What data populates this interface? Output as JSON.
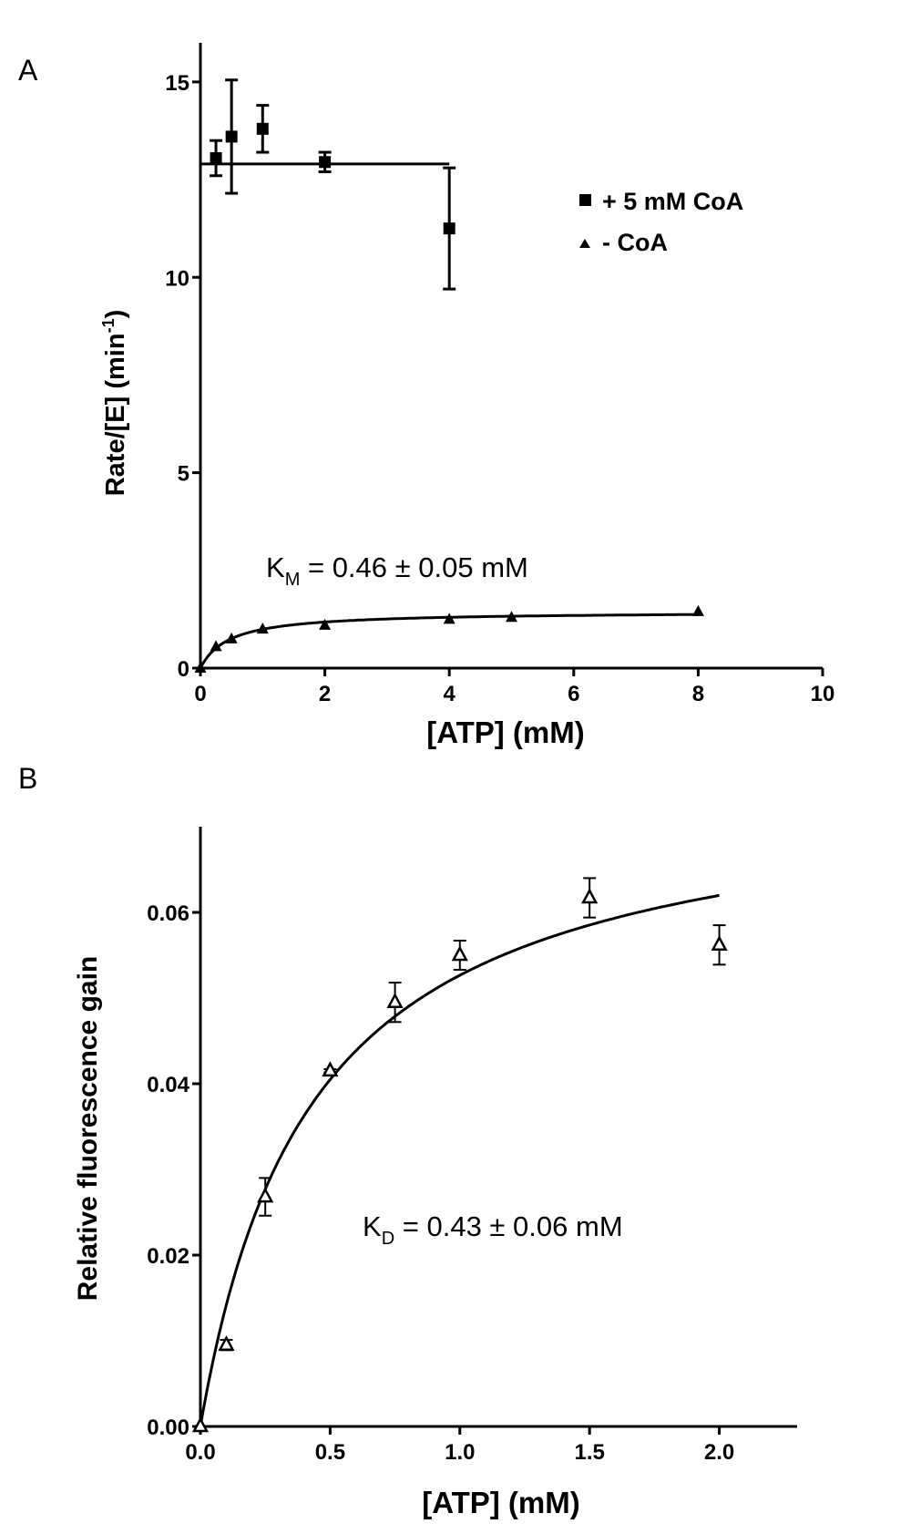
{
  "panels": {
    "a_label": "A",
    "b_label": "B"
  },
  "chart_data": [
    {
      "type": "scatter",
      "panel": "A",
      "xlabel": "[ATP]  (mM)",
      "ylabel_main": "Rate/[E] (min",
      "ylabel_sup": "-1",
      "ylabel_tail": ")",
      "xlim": [
        0,
        10
      ],
      "ylim": [
        0,
        16
      ],
      "xticks": [
        0,
        2,
        4,
        6,
        8,
        10
      ],
      "xtick_labels": [
        "0",
        "2",
        "4",
        "6",
        "8",
        "10"
      ],
      "yticks": [
        0,
        5,
        10,
        15
      ],
      "ytick_labels": [
        "0",
        "5",
        "10",
        "15"
      ],
      "legend_position": "top-right",
      "annotation": {
        "prefix": "K",
        "sub": "M",
        "rest": " = 0.46 ± 0.05 mM"
      },
      "series": [
        {
          "name": "+ 5 mM CoA",
          "marker": "square",
          "x": [
            0.25,
            0.5,
            1,
            2,
            4
          ],
          "y": [
            13.05,
            13.6,
            13.8,
            12.95,
            11.25
          ],
          "err": [
            0.45,
            1.45,
            0.6,
            0.25,
            1.55
          ],
          "fit": {
            "kind": "constant",
            "value": 12.9,
            "x_range": [
              0,
              4
            ]
          }
        },
        {
          "name": "- CoA",
          "marker": "triangle",
          "x": [
            0,
            0.25,
            0.5,
            1,
            2,
            4,
            5,
            8
          ],
          "y": [
            0,
            0.55,
            0.75,
            1.0,
            1.1,
            1.25,
            1.3,
            1.45
          ],
          "err": [],
          "fit": {
            "kind": "michaelis-menten",
            "vmax": 1.45,
            "km": 0.46,
            "x_range": [
              0,
              8
            ]
          }
        }
      ]
    },
    {
      "type": "scatter",
      "panel": "B",
      "xlabel": "[ATP]  (mM)",
      "ylabel": "Relative fluorescence gain",
      "xlim": [
        0,
        2.3
      ],
      "ylim": [
        0,
        0.07
      ],
      "xticks": [
        0,
        0.5,
        1,
        1.5,
        2
      ],
      "xtick_labels": [
        "0.0",
        "0.5",
        "1.0",
        "1.5",
        "2.0"
      ],
      "yticks": [
        0,
        0.02,
        0.04,
        0.06
      ],
      "ytick_labels": [
        "0.00",
        "0.02",
        "0.04",
        "0.06"
      ],
      "annotation": {
        "prefix": "K",
        "sub": "D",
        "rest": " = 0.43 ± 0.06 mM"
      },
      "series": [
        {
          "marker": "open-triangle",
          "x": [
            0,
            0.1,
            0.25,
            0.5,
            0.75,
            1.0,
            1.5,
            2.0
          ],
          "y": [
            0,
            0.0095,
            0.0268,
            0.0415,
            0.0495,
            0.055,
            0.0617,
            0.0562
          ],
          "err": [
            0,
            0.0006,
            0.0022,
            0.0002,
            0.0023,
            0.0017,
            0.0023,
            0.0023
          ],
          "fit": {
            "kind": "hyperbolic",
            "bmax": 0.0753,
            "kd": 0.43,
            "x_range": [
              0,
              2
            ]
          }
        }
      ]
    }
  ]
}
